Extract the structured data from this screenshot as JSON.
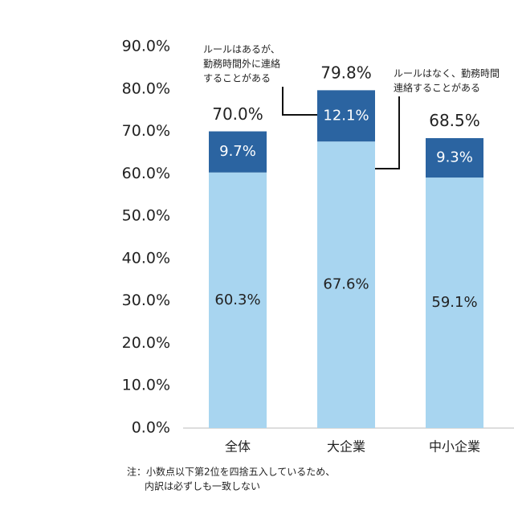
{
  "chart_data": {
    "type": "bar",
    "stacked": true,
    "categories": [
      "全体",
      "大企業",
      "中小企業"
    ],
    "series": [
      {
        "color": "#a8d5f0",
        "values": [
          60.3,
          67.6,
          59.1
        ],
        "value_labels": [
          "60.3%",
          "67.6%",
          "59.1%"
        ]
      },
      {
        "color": "#2b64a1",
        "values": [
          9.7,
          12.1,
          9.3
        ],
        "value_labels": [
          "9.7%",
          "12.1%",
          "9.3%"
        ]
      }
    ],
    "totals": [
      70.0,
      79.8,
      68.5
    ],
    "total_labels": [
      "70.0%",
      "79.8%",
      "68.5%"
    ],
    "ylim": [
      0,
      90
    ],
    "yticks": [
      {
        "value": 0,
        "label": "0.0%"
      },
      {
        "value": 10,
        "label": "10.0%"
      },
      {
        "value": 20,
        "label": "20.0%"
      },
      {
        "value": 30,
        "label": "30.0%"
      },
      {
        "value": 40,
        "label": "40.0%"
      },
      {
        "value": 50,
        "label": "50.0%"
      },
      {
        "value": 60,
        "label": "60.0%"
      },
      {
        "value": 70,
        "label": "70.0%"
      },
      {
        "value": 80,
        "label": "80.0%"
      },
      {
        "value": 90,
        "label": "90.0%"
      }
    ],
    "annotations": [
      {
        "lines": [
          "ルールはあるが、",
          "勤務時間外に連絡",
          "することがある"
        ]
      },
      {
        "lines": [
          "ルールはなく、勤務時間",
          "連絡することがある"
        ]
      }
    ],
    "note": [
      "注：小数点以下第2位を四捨五入しているため、",
      "内訳は必ずしも一致しない"
    ]
  }
}
